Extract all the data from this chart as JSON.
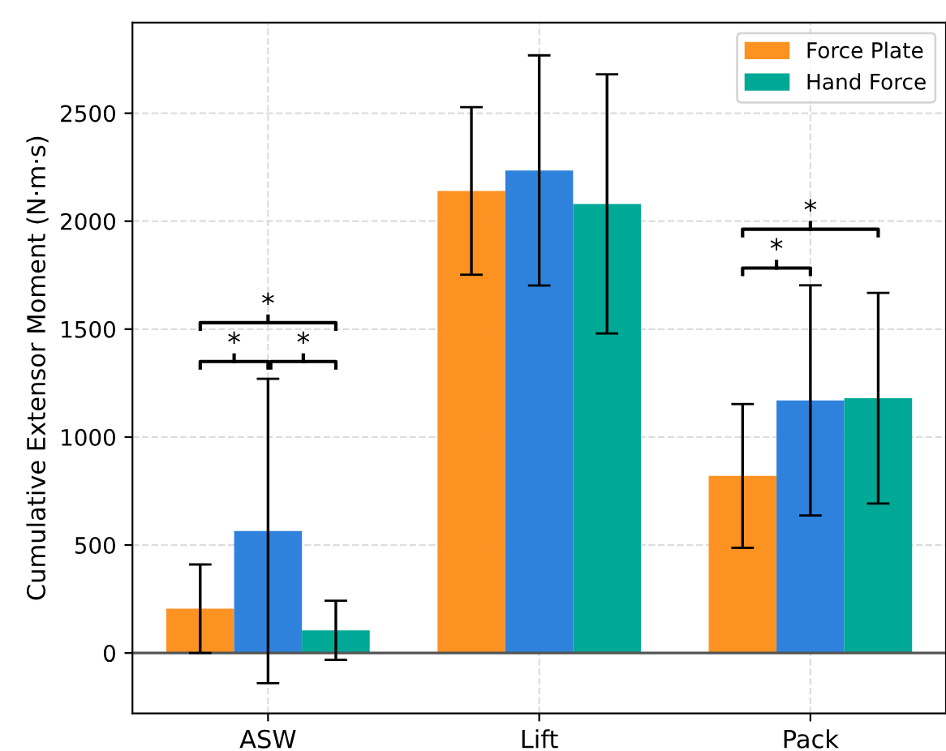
{
  "chart_data": {
    "type": "bar",
    "ylabel": "Cumulative Extensor Moment (N·m·s)",
    "categories": [
      "ASW",
      "Lift",
      "Pack"
    ],
    "series": [
      {
        "name": "Force Plate",
        "color": "#fb9221",
        "values": [
          205,
          2140,
          820
        ],
        "errors": [
          205,
          388,
          333
        ]
      },
      {
        "color": "#2f82dc",
        "values": [
          565,
          2235,
          1170
        ],
        "errors": [
          705,
          533,
          533
        ]
      },
      {
        "name": "Hand Force",
        "color": "#00a896",
        "values": [
          105,
          2080,
          1180
        ],
        "errors": [
          137,
          600,
          488
        ]
      }
    ],
    "ylim": [
      -280,
      2920
    ],
    "yticks": [
      0,
      500,
      1000,
      1500,
      2000,
      2500
    ],
    "grid": true,
    "legend": "top right",
    "annotations": [
      "*",
      "*",
      "*",
      "*",
      "*"
    ]
  }
}
